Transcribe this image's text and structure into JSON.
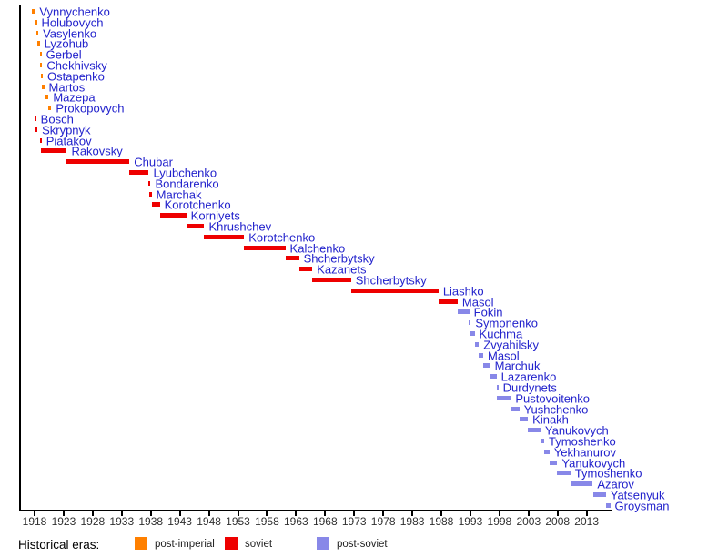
{
  "chart_data": {
    "type": "bar",
    "subtype": "timeline-gantt",
    "legend_title": "Historical eras:",
    "legend_position": "bottom",
    "grid": false,
    "label_color": "#2222CC",
    "axis_color": "#000000",
    "tick_label_color": "#303030",
    "x_ticks": [
      1918,
      1923,
      1928,
      1933,
      1938,
      1943,
      1948,
      1953,
      1958,
      1963,
      1968,
      1973,
      1978,
      1983,
      1988,
      1993,
      1998,
      2003,
      2008,
      2013
    ],
    "x_range": [
      1915.4,
      2017.4
    ],
    "eras": [
      {
        "id": "post-imperial",
        "label": "post-imperial",
        "color": "#FF8000"
      },
      {
        "id": "soviet",
        "label": "soviet",
        "color": "#EE0000"
      },
      {
        "id": "post-soviet",
        "label": "post-soviet",
        "color": "#8888E8"
      }
    ],
    "entries": [
      {
        "name": "Vynnychenko",
        "era": "post-imperial",
        "start": 1917.5,
        "end": 1918.05
      },
      {
        "name": "Holubovych",
        "era": "post-imperial",
        "start": 1918.08,
        "end": 1918.33
      },
      {
        "name": "Vasylenko",
        "era": "post-imperial",
        "start": 1918.33,
        "end": 1918.42
      },
      {
        "name": "Lyzohub",
        "era": "post-imperial",
        "start": 1918.4,
        "end": 1918.88
      },
      {
        "name": "Gerbel",
        "era": "post-imperial",
        "start": 1918.88,
        "end": 1918.97
      },
      {
        "name": "Chekhivsky",
        "era": "post-imperial",
        "start": 1918.99,
        "end": 1919.1
      },
      {
        "name": "Ostapenko",
        "era": "post-imperial",
        "start": 1919.1,
        "end": 1919.27
      },
      {
        "name": "Martos",
        "era": "post-imperial",
        "start": 1919.27,
        "end": 1919.65
      },
      {
        "name": "Mazepa",
        "era": "post-imperial",
        "start": 1919.65,
        "end": 1920.4
      },
      {
        "name": "Prokopovych",
        "era": "post-imperial",
        "start": 1920.4,
        "end": 1920.87
      },
      {
        "name": "Bosch",
        "era": "soviet",
        "start": 1917.95,
        "end": 1918.2
      },
      {
        "name": "Skrypnyk",
        "era": "soviet",
        "start": 1918.17,
        "end": 1918.3
      },
      {
        "name": "Piatakov",
        "era": "soviet",
        "start": 1918.9,
        "end": 1919.02
      },
      {
        "name": "Rakovsky",
        "era": "soviet",
        "start": 1919.05,
        "end": 1923.55
      },
      {
        "name": "Chubar",
        "era": "soviet",
        "start": 1923.55,
        "end": 1934.33
      },
      {
        "name": "Lyubchenko",
        "era": "soviet",
        "start": 1934.33,
        "end": 1937.65
      },
      {
        "name": "Bondarenko",
        "era": "soviet",
        "start": 1937.65,
        "end": 1937.8
      },
      {
        "name": "Marchak",
        "era": "soviet",
        "start": 1937.8,
        "end": 1938.15
      },
      {
        "name": "Korotchenko",
        "era": "soviet",
        "start": 1938.15,
        "end": 1939.55
      },
      {
        "name": "Korniyets",
        "era": "soviet",
        "start": 1939.55,
        "end": 1944.1
      },
      {
        "name": "Khrushchev",
        "era": "soviet",
        "start": 1944.1,
        "end": 1947.2
      },
      {
        "name": "Korotchenko",
        "era": "soviet",
        "start": 1947.2,
        "end": 1954.05
      },
      {
        "name": "Kalchenko",
        "era": "soviet",
        "start": 1954.05,
        "end": 1961.15
      },
      {
        "name": "Shcherbytsky",
        "era": "soviet",
        "start": 1961.15,
        "end": 1963.5
      },
      {
        "name": "Kazanets",
        "era": "soviet",
        "start": 1963.5,
        "end": 1965.8
      },
      {
        "name": "Shcherbytsky",
        "era": "soviet",
        "start": 1965.8,
        "end": 1972.45
      },
      {
        "name": "Liashko",
        "era": "soviet",
        "start": 1972.45,
        "end": 1987.5
      },
      {
        "name": "Masol",
        "era": "soviet",
        "start": 1987.5,
        "end": 1990.8
      },
      {
        "name": "Fokin",
        "era": "post-soviet",
        "start": 1990.8,
        "end": 1992.8
      },
      {
        "name": "Symonenko",
        "era": "post-soviet",
        "start": 1992.75,
        "end": 1992.83
      },
      {
        "name": "Kuchma",
        "era": "post-soviet",
        "start": 1992.8,
        "end": 1993.72
      },
      {
        "name": "Zvyahilsky",
        "era": "post-soviet",
        "start": 1993.72,
        "end": 1994.46
      },
      {
        "name": "Masol",
        "era": "post-soviet",
        "start": 1994.46,
        "end": 1995.2
      },
      {
        "name": "Marchuk",
        "era": "post-soviet",
        "start": 1995.2,
        "end": 1996.4
      },
      {
        "name": "Lazarenko",
        "era": "post-soviet",
        "start": 1996.4,
        "end": 1997.5
      },
      {
        "name": "Durdynets",
        "era": "post-soviet",
        "start": 1997.5,
        "end": 1997.56
      },
      {
        "name": "Pustovoitenko",
        "era": "post-soviet",
        "start": 1997.56,
        "end": 1999.95
      },
      {
        "name": "Yushchenko",
        "era": "post-soviet",
        "start": 1999.95,
        "end": 2001.4
      },
      {
        "name": "Kinakh",
        "era": "post-soviet",
        "start": 2001.4,
        "end": 2002.9
      },
      {
        "name": "Yanukovych",
        "era": "post-soviet",
        "start": 2002.9,
        "end": 2005.05
      },
      {
        "name": "Tymoshenko",
        "era": "post-soviet",
        "start": 2005.1,
        "end": 2005.7
      },
      {
        "name": "Yekhanurov",
        "era": "post-soviet",
        "start": 2005.7,
        "end": 2006.6
      },
      {
        "name": "Yanukovych",
        "era": "post-soviet",
        "start": 2006.6,
        "end": 2007.95
      },
      {
        "name": "Tymoshenko",
        "era": "post-soviet",
        "start": 2007.95,
        "end": 2010.2
      },
      {
        "name": "Azarov",
        "era": "post-soviet",
        "start": 2010.2,
        "end": 2014.05
      },
      {
        "name": "Yatsenyuk",
        "era": "post-soviet",
        "start": 2014.15,
        "end": 2016.3
      },
      {
        "name": "Groysman",
        "era": "post-soviet",
        "start": 2016.3,
        "end": 2017.05
      }
    ]
  }
}
